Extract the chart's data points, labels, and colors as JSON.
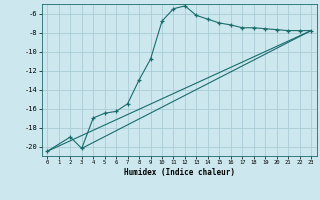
{
  "xlabel": "Humidex (Indice chaleur)",
  "bg_color": "#cce8ee",
  "grid_color": "#aaccd4",
  "line_color": "#1a6b6b",
  "xlim": [
    -0.5,
    23.5
  ],
  "ylim": [
    -21.0,
    -5.0
  ],
  "yticks": [
    -20,
    -18,
    -16,
    -14,
    -12,
    -10,
    -8,
    -6
  ],
  "xticks": [
    0,
    1,
    2,
    3,
    4,
    5,
    6,
    7,
    8,
    9,
    10,
    11,
    12,
    13,
    14,
    15,
    16,
    17,
    18,
    19,
    20,
    21,
    22,
    23
  ],
  "curve_x": [
    0,
    2,
    3,
    4,
    5,
    6,
    7,
    8,
    9,
    10,
    11,
    12,
    13,
    14,
    15,
    16,
    17,
    18,
    19,
    20,
    21,
    22,
    23
  ],
  "curve_y": [
    -20.5,
    -19.0,
    -20.2,
    -17.0,
    -16.5,
    -16.3,
    -15.5,
    -13.0,
    -10.8,
    -6.8,
    -5.5,
    -5.2,
    -6.2,
    -6.6,
    -7.0,
    -7.2,
    -7.5,
    -7.5,
    -7.6,
    -7.7,
    -7.8,
    -7.8,
    -7.8
  ],
  "line1_x": [
    0,
    23
  ],
  "line1_y": [
    -20.5,
    -7.8
  ],
  "line2_x": [
    3,
    23
  ],
  "line2_y": [
    -20.2,
    -7.8
  ]
}
